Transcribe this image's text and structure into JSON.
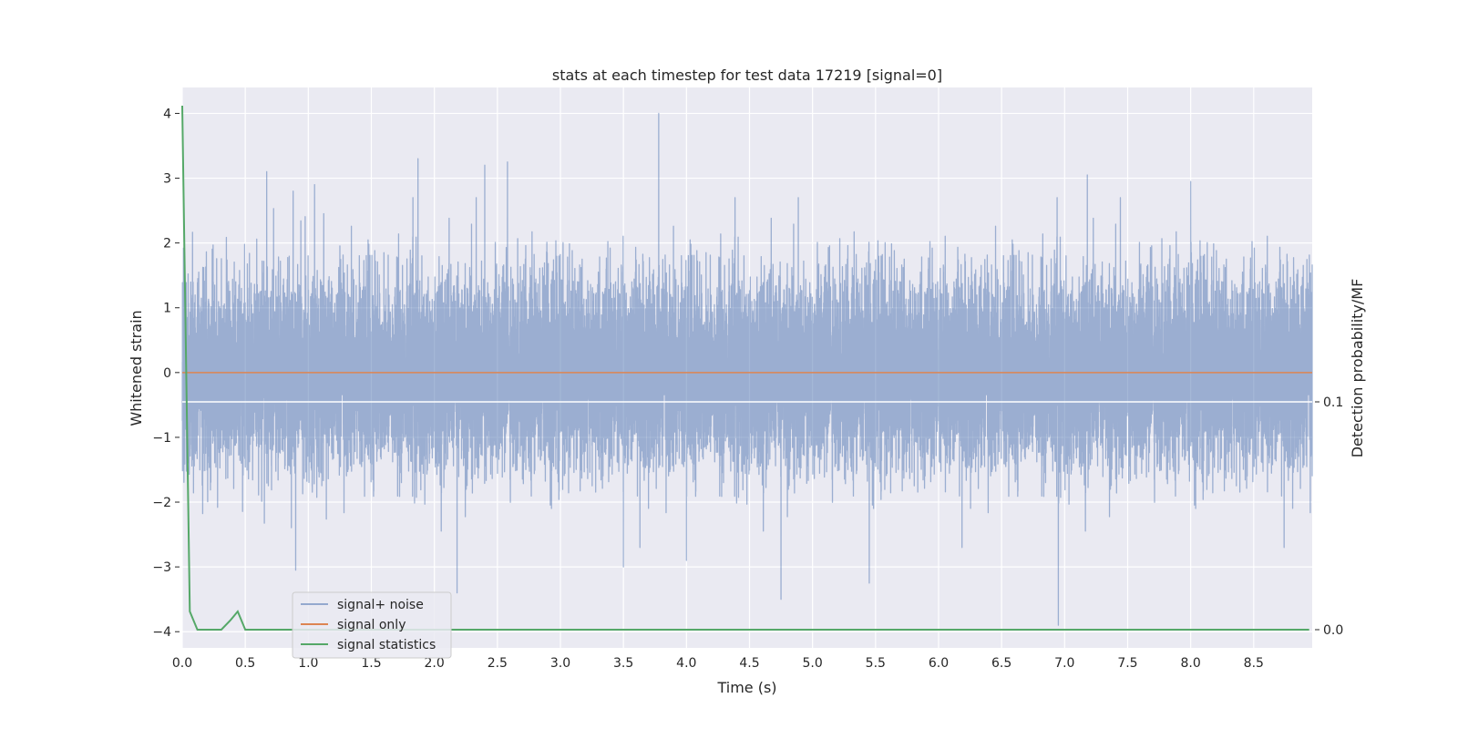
{
  "chart_data": {
    "type": "line",
    "title": "stats at each timestep for test data 17219 [signal=0]",
    "xlabel": "Time (s)",
    "ylabel": "Whitened strain",
    "y2label": "Detection probability/MF",
    "xlim": [
      0.0,
      9.0
    ],
    "ylim": [
      -4.25,
      4.4
    ],
    "y2lim": [
      -0.008,
      0.238
    ],
    "x_ticks": [
      "0.0",
      "0.5",
      "1.0",
      "1.5",
      "2.0",
      "2.5",
      "3.0",
      "3.5",
      "4.0",
      "4.5",
      "5.0",
      "5.5",
      "6.0",
      "6.5",
      "7.0",
      "7.5",
      "8.0",
      "8.5"
    ],
    "y_ticks": [
      "4",
      "3",
      "2",
      "1",
      "0",
      "−1",
      "−2",
      "−3",
      "−4"
    ],
    "y2_ticks": [
      "0.1",
      "0.0"
    ],
    "grid": true,
    "legend_position": "lower-left",
    "series": [
      {
        "name": "signal+ noise",
        "color": "#4c72b0",
        "description": "whitened strain noise, dense, amplitude roughly ±2, sampled 2048 Hz",
        "x_range": [
          0.0,
          9.0
        ],
        "sample_rate": 2048,
        "spikes": [
          {
            "x": 0.67,
            "y": 3.1
          },
          {
            "x": 0.88,
            "y": 2.8
          },
          {
            "x": 1.05,
            "y": 2.9
          },
          {
            "x": 1.87,
            "y": 3.3
          },
          {
            "x": 2.4,
            "y": 3.2
          },
          {
            "x": 2.58,
            "y": 3.25
          },
          {
            "x": 3.78,
            "y": 4.0
          },
          {
            "x": 7.18,
            "y": 3.05
          },
          {
            "x": 8.0,
            "y": 2.95
          },
          {
            "x": 0.9,
            "y": -3.05
          },
          {
            "x": 2.18,
            "y": -3.4
          },
          {
            "x": 4.75,
            "y": -3.5
          },
          {
            "x": 5.45,
            "y": -3.25
          },
          {
            "x": 6.95,
            "y": -3.9
          },
          {
            "x": 3.5,
            "y": -3.0
          },
          {
            "x": 4.0,
            "y": -2.9
          }
        ]
      },
      {
        "name": "signal only",
        "color": "#dd8452",
        "x": [
          0.0,
          9.0
        ],
        "y": [
          0.0,
          0.0
        ]
      },
      {
        "name": "signal statistics",
        "color": "#55a868",
        "axis": "secondary",
        "x": [
          0.0,
          0.06,
          0.12,
          0.19,
          0.25,
          0.31,
          0.38,
          0.44,
          0.5,
          0.56,
          0.62,
          0.69,
          8.94
        ],
        "y": [
          0.23,
          0.008,
          0.0,
          0.0,
          0.0,
          0.0,
          0.004,
          0.008,
          0.0,
          0.0,
          0.0,
          0.0,
          0.0
        ]
      }
    ]
  },
  "colors": {
    "plot_background": "#eaeaf2",
    "grid": "#ffffff",
    "text": "#262626"
  }
}
